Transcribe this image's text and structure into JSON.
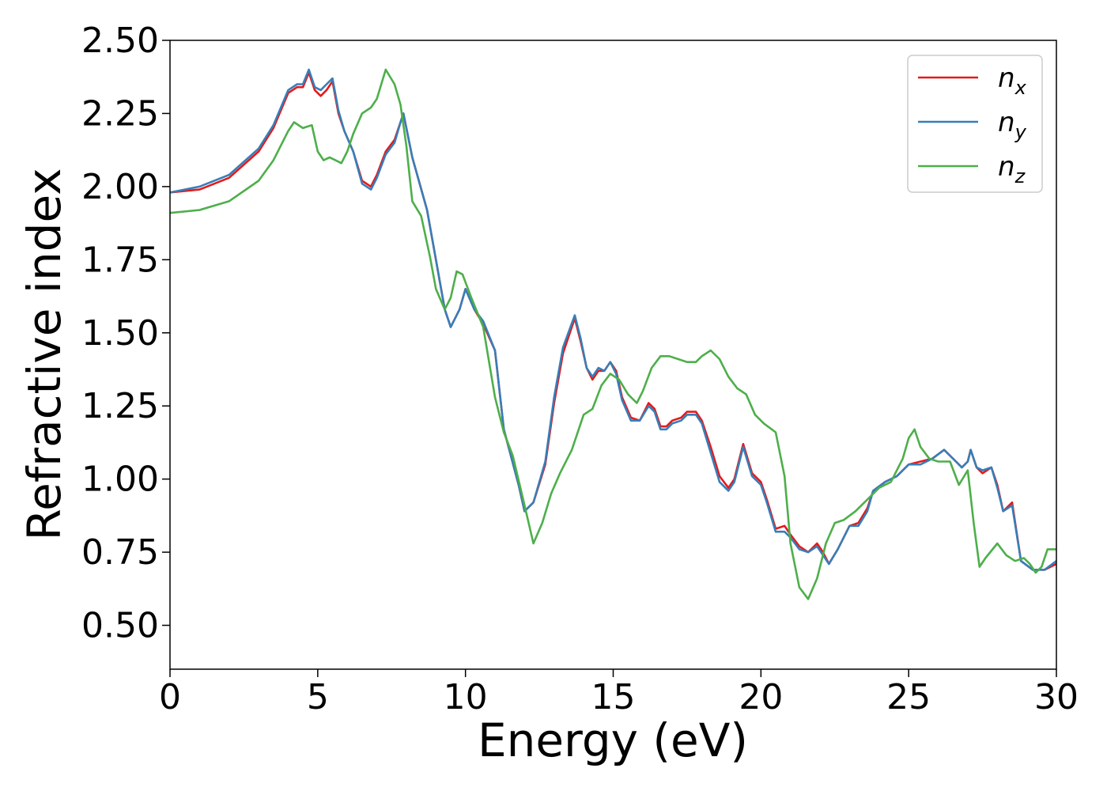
{
  "chart_data": {
    "type": "line",
    "title": "",
    "xlabel": "Energy (eV)",
    "ylabel": "Refractive index",
    "xlim": [
      0,
      30
    ],
    "ylim": [
      0.35,
      2.5
    ],
    "xticks": [
      0,
      5,
      10,
      15,
      20,
      25,
      30
    ],
    "xtick_labels": [
      "0",
      "5",
      "10",
      "15",
      "20",
      "25",
      "30"
    ],
    "yticks": [
      0.5,
      0.75,
      1.0,
      1.25,
      1.5,
      1.75,
      2.0,
      2.25,
      2.5
    ],
    "ytick_labels": [
      "0.50",
      "0.75",
      "1.00",
      "1.25",
      "1.50",
      "1.75",
      "2.00",
      "2.25",
      "2.50"
    ],
    "grid": false,
    "legend_position": "top-right",
    "series": [
      {
        "name": "n",
        "subscript": "x",
        "color": "#e41a1c",
        "x": [
          0,
          1,
          2,
          3,
          3.5,
          4,
          4.3,
          4.5,
          4.7,
          4.9,
          5.1,
          5.3,
          5.5,
          5.7,
          5.9,
          6.2,
          6.5,
          6.8,
          7.0,
          7.3,
          7.6,
          7.8,
          7.9,
          8.2,
          8.7,
          9.0,
          9.3,
          9.5,
          9.8,
          10.0,
          10.3,
          10.6,
          11.0,
          11.3,
          11.8,
          12.0,
          12.3,
          12.7,
          13.0,
          13.3,
          13.7,
          13.9,
          14.1,
          14.3,
          14.5,
          14.7,
          14.9,
          15.1,
          15.3,
          15.6,
          15.9,
          16.2,
          16.4,
          16.6,
          16.8,
          17.0,
          17.3,
          17.5,
          17.8,
          18.0,
          18.3,
          18.6,
          18.9,
          19.1,
          19.4,
          19.7,
          20.0,
          20.2,
          20.5,
          20.8,
          21.0,
          21.3,
          21.6,
          21.9,
          22.1,
          22.3,
          22.6,
          23.0,
          23.3,
          23.6,
          23.8,
          24.2,
          24.6,
          25.0,
          25.4,
          25.8,
          26.2,
          26.6,
          26.8,
          27.0,
          27.1,
          27.3,
          27.5,
          27.8,
          28.0,
          28.2,
          28.5,
          28.8,
          29.2,
          29.6,
          30.0
        ],
        "y": [
          1.98,
          1.99,
          2.03,
          2.12,
          2.2,
          2.32,
          2.34,
          2.34,
          2.39,
          2.33,
          2.31,
          2.33,
          2.36,
          2.25,
          2.19,
          2.12,
          2.02,
          2.0,
          2.04,
          2.12,
          2.16,
          2.22,
          2.25,
          2.1,
          1.92,
          1.75,
          1.58,
          1.52,
          1.58,
          1.65,
          1.58,
          1.53,
          1.44,
          1.17,
          0.98,
          0.89,
          0.92,
          1.05,
          1.26,
          1.43,
          1.55,
          1.47,
          1.38,
          1.34,
          1.37,
          1.37,
          1.4,
          1.37,
          1.28,
          1.21,
          1.2,
          1.26,
          1.24,
          1.18,
          1.18,
          1.2,
          1.21,
          1.23,
          1.23,
          1.2,
          1.11,
          1.01,
          0.97,
          1.0,
          1.12,
          1.02,
          0.99,
          0.93,
          0.83,
          0.84,
          0.81,
          0.77,
          0.75,
          0.78,
          0.75,
          0.71,
          0.76,
          0.84,
          0.85,
          0.9,
          0.96,
          0.99,
          1.01,
          1.05,
          1.06,
          1.07,
          1.1,
          1.06,
          1.04,
          1.06,
          1.1,
          1.04,
          1.02,
          1.04,
          0.98,
          0.89,
          0.92,
          0.72,
          0.69,
          0.69,
          0.71
        ]
      },
      {
        "name": "n",
        "subscript": "y",
        "color": "#377eb8",
        "x": [
          0,
          1,
          2,
          3,
          3.5,
          4,
          4.3,
          4.5,
          4.7,
          4.9,
          5.1,
          5.3,
          5.5,
          5.7,
          5.9,
          6.2,
          6.5,
          6.8,
          7.0,
          7.3,
          7.6,
          7.8,
          7.9,
          8.2,
          8.7,
          9.0,
          9.3,
          9.5,
          9.8,
          10.0,
          10.3,
          10.6,
          11.0,
          11.3,
          11.8,
          12.0,
          12.3,
          12.7,
          13.0,
          13.3,
          13.7,
          13.9,
          14.1,
          14.3,
          14.5,
          14.7,
          14.9,
          15.1,
          15.3,
          15.6,
          15.9,
          16.2,
          16.4,
          16.6,
          16.8,
          17.0,
          17.3,
          17.5,
          17.8,
          18.0,
          18.3,
          18.6,
          18.9,
          19.1,
          19.4,
          19.7,
          20.0,
          20.2,
          20.5,
          20.8,
          21.0,
          21.3,
          21.6,
          21.9,
          22.1,
          22.3,
          22.6,
          23.0,
          23.3,
          23.6,
          23.8,
          24.2,
          24.6,
          25.0,
          25.4,
          25.8,
          26.2,
          26.6,
          26.8,
          27.0,
          27.1,
          27.3,
          27.5,
          27.8,
          28.0,
          28.2,
          28.5,
          28.8,
          29.2,
          29.6,
          30.0
        ],
        "y": [
          1.98,
          2.0,
          2.04,
          2.13,
          2.21,
          2.33,
          2.35,
          2.35,
          2.4,
          2.34,
          2.33,
          2.35,
          2.37,
          2.26,
          2.19,
          2.12,
          2.01,
          1.99,
          2.03,
          2.11,
          2.15,
          2.22,
          2.25,
          2.1,
          1.92,
          1.75,
          1.58,
          1.52,
          1.58,
          1.65,
          1.58,
          1.54,
          1.44,
          1.17,
          0.98,
          0.89,
          0.92,
          1.06,
          1.28,
          1.45,
          1.56,
          1.48,
          1.38,
          1.35,
          1.38,
          1.37,
          1.4,
          1.36,
          1.27,
          1.2,
          1.2,
          1.25,
          1.23,
          1.17,
          1.17,
          1.19,
          1.2,
          1.22,
          1.22,
          1.19,
          1.09,
          0.99,
          0.96,
          0.99,
          1.11,
          1.01,
          0.98,
          0.92,
          0.82,
          0.82,
          0.8,
          0.76,
          0.75,
          0.77,
          0.74,
          0.71,
          0.76,
          0.84,
          0.84,
          0.89,
          0.96,
          0.99,
          1.01,
          1.05,
          1.05,
          1.07,
          1.1,
          1.06,
          1.04,
          1.06,
          1.1,
          1.04,
          1.03,
          1.04,
          0.97,
          0.89,
          0.91,
          0.72,
          0.69,
          0.69,
          0.72
        ]
      },
      {
        "name": "n",
        "subscript": "z",
        "color": "#4daf4a",
        "x": [
          0,
          1,
          2,
          3,
          3.5,
          4,
          4.2,
          4.5,
          4.8,
          5.0,
          5.2,
          5.4,
          5.6,
          5.8,
          6.0,
          6.2,
          6.5,
          6.8,
          7.0,
          7.3,
          7.6,
          7.8,
          8.0,
          8.2,
          8.5,
          8.8,
          9.0,
          9.3,
          9.5,
          9.7,
          9.9,
          10.2,
          10.6,
          11.0,
          11.3,
          11.6,
          12.0,
          12.3,
          12.6,
          12.9,
          13.2,
          13.6,
          14.0,
          14.3,
          14.6,
          14.9,
          15.2,
          15.5,
          15.8,
          16.0,
          16.3,
          16.6,
          16.9,
          17.2,
          17.5,
          17.8,
          18.0,
          18.3,
          18.6,
          18.9,
          19.2,
          19.5,
          19.8,
          20.1,
          20.5,
          20.8,
          21.0,
          21.3,
          21.6,
          21.9,
          22.2,
          22.5,
          22.8,
          23.2,
          23.6,
          24.0,
          24.4,
          24.8,
          25.0,
          25.2,
          25.4,
          25.7,
          26.0,
          26.4,
          26.7,
          27.0,
          27.2,
          27.4,
          27.6,
          28.0,
          28.3,
          28.6,
          28.9,
          29.1,
          29.3,
          29.5,
          29.7,
          30.0
        ],
        "y": [
          1.91,
          1.92,
          1.95,
          2.02,
          2.09,
          2.19,
          2.22,
          2.2,
          2.21,
          2.12,
          2.09,
          2.1,
          2.09,
          2.08,
          2.12,
          2.18,
          2.25,
          2.27,
          2.3,
          2.4,
          2.35,
          2.28,
          2.14,
          1.95,
          1.9,
          1.76,
          1.65,
          1.58,
          1.62,
          1.71,
          1.7,
          1.62,
          1.52,
          1.28,
          1.16,
          1.08,
          0.91,
          0.78,
          0.85,
          0.95,
          1.02,
          1.1,
          1.22,
          1.24,
          1.32,
          1.36,
          1.34,
          1.29,
          1.26,
          1.3,
          1.38,
          1.42,
          1.42,
          1.41,
          1.4,
          1.4,
          1.42,
          1.44,
          1.41,
          1.35,
          1.31,
          1.29,
          1.22,
          1.19,
          1.16,
          1.01,
          0.78,
          0.63,
          0.59,
          0.66,
          0.78,
          0.85,
          0.86,
          0.89,
          0.93,
          0.97,
          0.99,
          1.07,
          1.14,
          1.17,
          1.11,
          1.07,
          1.06,
          1.06,
          0.98,
          1.03,
          0.85,
          0.7,
          0.73,
          0.78,
          0.74,
          0.72,
          0.73,
          0.71,
          0.68,
          0.7,
          0.76,
          0.76
        ]
      }
    ]
  }
}
